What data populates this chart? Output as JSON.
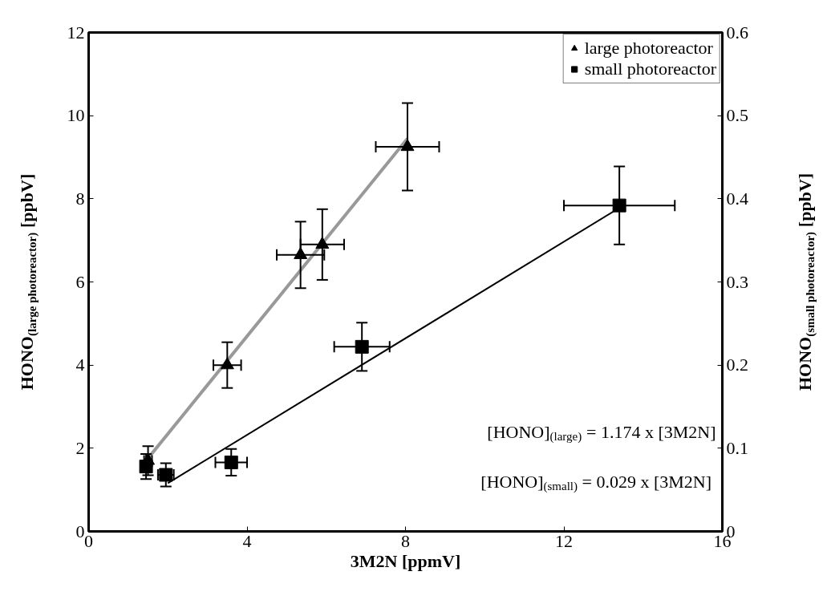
{
  "chart_data": {
    "type": "scatter",
    "xlabel": "3M2N [ppmV]",
    "ylabel": "HONO$_{(large photoreactor)}$ [ppbV]",
    "y2label": "HONO$_{(small photoreactor)}$ [ppbV]",
    "xlim": [
      0,
      16
    ],
    "xticks": [
      0,
      4,
      8,
      12,
      16
    ],
    "ylim": [
      0,
      12
    ],
    "yticks": [
      0,
      2,
      4,
      6,
      8,
      10,
      12
    ],
    "y2lim": [
      0,
      0.6
    ],
    "y2ticks": [
      0,
      0.1,
      0.2,
      0.3,
      0.4,
      0.5,
      0.6
    ],
    "grid": false,
    "legend": "top right",
    "series": [
      {
        "name": "large photoreactor",
        "marker": "triangle",
        "color": "#000000",
        "x": [
          1.5,
          3.5,
          5.35,
          5.9,
          8.05
        ],
        "values": [
          1.7,
          4.0,
          6.65,
          6.9,
          9.25
        ],
        "errors": [
          0.35,
          0.55,
          0.8,
          0.85,
          1.05
        ],
        "xerrors": [
          0.1,
          0.35,
          0.6,
          0.55,
          0.8
        ]
      },
      {
        "name": "small photoreactor",
        "marker": "square",
        "color": "#000000",
        "axis": "y2",
        "x": [
          1.45,
          1.95,
          3.6,
          6.9,
          13.4
        ],
        "values": [
          0.078,
          0.068,
          0.083,
          0.222,
          0.392
        ],
        "errors": [
          0.015,
          0.014,
          0.016,
          0.029,
          0.047
        ],
        "xerrors": [
          0.1,
          0.2,
          0.4,
          0.7,
          1.4
        ]
      },
      {
        "type": "line",
        "color": "#999999",
        "x": [
          1.45,
          8.05
        ],
        "values": [
          1.7,
          9.45
        ]
      },
      {
        "type": "line",
        "color": "#000000",
        "axis": "y2",
        "x": [
          2.0,
          13.4
        ],
        "values": [
          0.058,
          0.389
        ]
      }
    ],
    "annotations": [
      "[HONO]$_{(large)}$ = 1.174 x [3M2N]",
      "[HONO]$_{(small)}$ =  0.029 x [3M2N]"
    ]
  }
}
